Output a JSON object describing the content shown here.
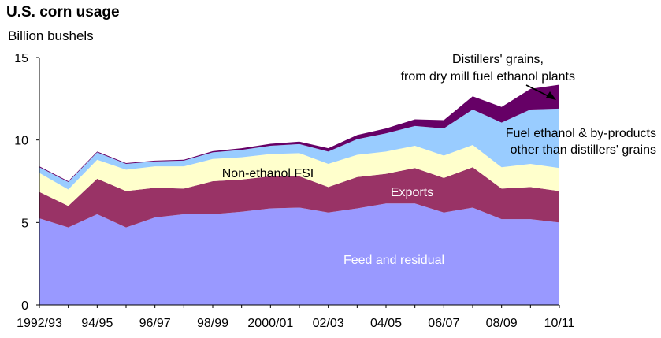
{
  "chart_data": {
    "type": "area",
    "stacked": true,
    "title": "U.S. corn usage",
    "ylabel": "Billion bushels",
    "xlabel": "",
    "ylim": [
      0,
      15
    ],
    "yticks": [
      0,
      5,
      10,
      15
    ],
    "x": [
      "1992/93",
      "93/94",
      "94/95",
      "95/96",
      "96/97",
      "97/98",
      "98/99",
      "99/00",
      "2000/01",
      "01/02",
      "02/03",
      "03/04",
      "04/05",
      "05/06",
      "06/07",
      "07/08",
      "08/09",
      "09/10",
      "10/11"
    ],
    "xtick_labels": [
      "1992/93",
      "94/95",
      "96/97",
      "98/99",
      "2000/01",
      "02/03",
      "04/05",
      "06/07",
      "08/09",
      "10/11"
    ],
    "series": [
      {
        "name": "Feed and residual",
        "color": "#9999ff",
        "label_color": "#ffffff",
        "values": [
          5.25,
          4.7,
          5.5,
          4.7,
          5.3,
          5.5,
          5.5,
          5.65,
          5.85,
          5.9,
          5.6,
          5.85,
          6.15,
          6.15,
          5.6,
          5.9,
          5.2,
          5.2,
          5.0
        ]
      },
      {
        "name": "Exports",
        "color": "#993366",
        "label_color": "#ffffff",
        "values": [
          1.6,
          1.3,
          2.15,
          2.2,
          1.8,
          1.55,
          2.0,
          1.95,
          1.95,
          1.9,
          1.55,
          1.9,
          1.8,
          2.15,
          2.1,
          2.45,
          1.85,
          1.95,
          1.9
        ]
      },
      {
        "name": "Non-ethanol FSI",
        "color": "#ffffcc",
        "label_color": "#000000",
        "values": [
          1.15,
          1.0,
          1.15,
          1.3,
          1.3,
          1.35,
          1.35,
          1.35,
          1.35,
          1.4,
          1.4,
          1.35,
          1.35,
          1.35,
          1.35,
          1.35,
          1.3,
          1.4,
          1.4
        ]
      },
      {
        "name": "Fuel ethanol & by-products other than distillers' grains",
        "color": "#99ccff",
        "label_color": "#000000",
        "values": [
          0.35,
          0.45,
          0.45,
          0.35,
          0.3,
          0.35,
          0.4,
          0.45,
          0.5,
          0.55,
          0.75,
          0.95,
          1.1,
          1.2,
          1.65,
          2.15,
          2.7,
          3.3,
          3.6
        ]
      },
      {
        "name": "Distillers' grains, from dry mill fuel ethanol plants",
        "color": "#660066",
        "label_color": "#000000",
        "values": [
          0.05,
          0.05,
          0.05,
          0.05,
          0.05,
          0.05,
          0.07,
          0.1,
          0.12,
          0.15,
          0.2,
          0.25,
          0.3,
          0.4,
          0.5,
          0.8,
          0.95,
          1.25,
          1.45
        ]
      }
    ],
    "annotations": {
      "feed": "Feed and residual",
      "exports": "Exports",
      "fsi": "Non-ethanol FSI",
      "ethanol_line1": "Fuel ethanol & by-products",
      "ethanol_line2": "other than distillers' grains",
      "dg_line1": "Distillers' grains,",
      "dg_line2": "from dry mill fuel ethanol plants"
    },
    "grid": false,
    "legend": "none"
  }
}
